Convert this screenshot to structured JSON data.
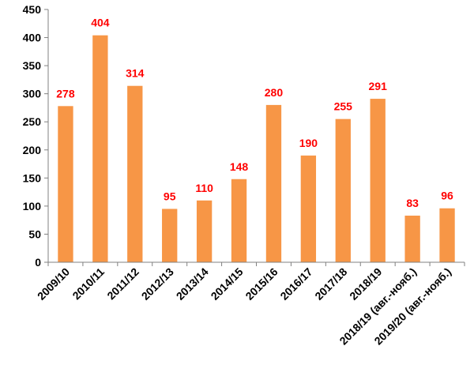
{
  "chart_data": {
    "type": "bar",
    "title": "",
    "xlabel": "",
    "ylabel": "",
    "categories": [
      "2009/10",
      "2010/11",
      "2011/12",
      "2012/13",
      "2013/14",
      "2014/15",
      "2015/16",
      "2016/17",
      "2017/18",
      "2018/19",
      "2018/19 (авг.-нояб.)",
      "2019/20 (авг.-нояб.)"
    ],
    "values": [
      278,
      404,
      314,
      95,
      110,
      148,
      280,
      190,
      255,
      291,
      83,
      96
    ],
    "ylim": [
      0,
      450
    ],
    "yticks": [
      0,
      50,
      100,
      150,
      200,
      250,
      300,
      350,
      400,
      450
    ],
    "grid": false,
    "legend": "none",
    "colors": {
      "bar": "#f79646",
      "data_label": "#ff0000",
      "axis": "#808080",
      "text": "#000000"
    }
  }
}
